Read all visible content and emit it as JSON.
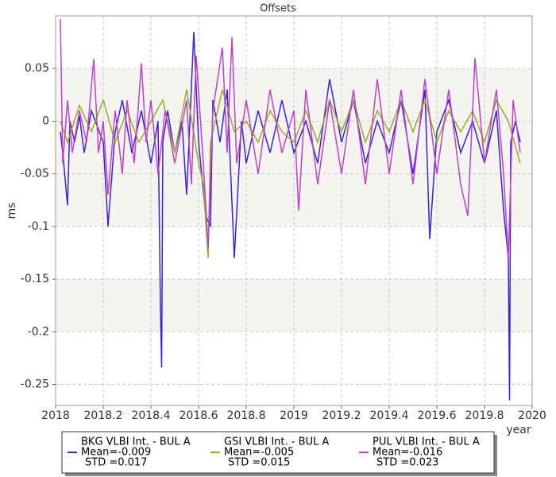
{
  "chart_data": {
    "type": "line",
    "title": "Offsets",
    "x_label": "year",
    "y_label": "ms",
    "xlim": [
      2018,
      2020
    ],
    "xticks": [
      2018,
      2018.2,
      2018.4,
      2018.6,
      2018.8,
      2019,
      2019.2,
      2019.4,
      2019.6,
      2019.8,
      2020
    ],
    "ylim": [
      -0.27,
      0.1
    ],
    "yticks": [
      0.05,
      0,
      -0.05,
      -0.1,
      -0.15,
      -0.2,
      -0.25
    ],
    "grid": true,
    "series": [
      {
        "name": "BKG VLBI Int. - BUL A",
        "color": "#3a22d8",
        "stats": [
          "Mean=-0.009",
          "STD =0.017"
        ],
        "x": [
          2018.02,
          2018.03,
          2018.05,
          2018.06,
          2018.08,
          2018.1,
          2018.12,
          2018.15,
          2018.2,
          2018.22,
          2018.25,
          2018.28,
          2018.32,
          2018.36,
          2018.4,
          2018.43,
          2018.44,
          2018.445,
          2018.45,
          2018.47,
          2018.5,
          2018.53,
          2018.55,
          2018.58,
          2018.6,
          2018.63,
          2018.65,
          2018.66,
          2018.69,
          2018.72,
          2018.75,
          2018.78,
          2018.8,
          2018.85,
          2018.9,
          2018.95,
          2019.0,
          2019.05,
          2019.1,
          2019.15,
          2019.2,
          2019.25,
          2019.3,
          2019.35,
          2019.4,
          2019.45,
          2019.5,
          2019.55,
          2019.57,
          2019.6,
          2019.65,
          2019.7,
          2019.75,
          2019.8,
          2019.85,
          2019.88,
          2019.9,
          2019.905,
          2019.91,
          2019.93,
          2019.95
        ],
        "values": [
          -0.01,
          -0.03,
          -0.08,
          0.0,
          -0.02,
          0.005,
          -0.03,
          0.01,
          -0.02,
          -0.1,
          -0.01,
          0.02,
          -0.03,
          0.01,
          -0.04,
          0.0,
          -0.178,
          -0.234,
          -0.02,
          0.01,
          -0.03,
          0.0,
          -0.07,
          0.085,
          -0.02,
          -0.09,
          -0.1,
          0.02,
          -0.02,
          0.03,
          -0.13,
          0.0,
          -0.04,
          0.01,
          -0.03,
          0.02,
          -0.03,
          0.0,
          -0.04,
          0.04,
          -0.02,
          0.02,
          -0.04,
          0.0,
          -0.03,
          0.02,
          -0.05,
          0.03,
          -0.112,
          -0.01,
          0.02,
          -0.03,
          0.0,
          -0.04,
          0.01,
          -0.085,
          -0.13,
          -0.265,
          -0.02,
          0.0,
          -0.02
        ]
      },
      {
        "name": "GSI VLBI Int. - BUL A",
        "color": "#9aab22",
        "stats": [
          "Mean=-0.005",
          "STD =0.015"
        ],
        "x": [
          2018.02,
          2018.05,
          2018.1,
          2018.15,
          2018.2,
          2018.25,
          2018.3,
          2018.35,
          2018.4,
          2018.45,
          2018.5,
          2018.55,
          2018.6,
          2018.62,
          2018.64,
          2018.65,
          2018.7,
          2018.75,
          2018.8,
          2018.85,
          2018.9,
          2018.95,
          2019.0,
          2019.05,
          2019.1,
          2019.15,
          2019.2,
          2019.25,
          2019.3,
          2019.35,
          2019.4,
          2019.45,
          2019.5,
          2019.55,
          2019.6,
          2019.65,
          2019.7,
          2019.75,
          2019.8,
          2019.85,
          2019.9,
          2019.95
        ],
        "values": [
          0.0,
          -0.02,
          0.015,
          -0.01,
          0.02,
          -0.02,
          0.01,
          -0.02,
          0.0,
          0.02,
          -0.03,
          0.03,
          -0.04,
          -0.06,
          -0.13,
          -0.02,
          0.03,
          -0.01,
          0.0,
          -0.02,
          0.01,
          -0.01,
          -0.02,
          0.01,
          -0.02,
          0.02,
          -0.01,
          0.02,
          -0.02,
          0.01,
          -0.01,
          0.02,
          -0.01,
          0.02,
          -0.02,
          0.01,
          -0.01,
          0.01,
          -0.02,
          0.02,
          0.0,
          -0.04
        ]
      },
      {
        "name": "PUL VLBI Int. - BUL A",
        "color": "#c040c8",
        "stats": [
          "Mean=-0.016",
          "STD =0.023"
        ],
        "x": [
          2018.02,
          2018.03,
          2018.05,
          2018.07,
          2018.1,
          2018.13,
          2018.16,
          2018.18,
          2018.2,
          2018.22,
          2018.25,
          2018.28,
          2018.3,
          2018.33,
          2018.36,
          2018.38,
          2018.4,
          2018.43,
          2018.46,
          2018.5,
          2018.55,
          2018.57,
          2018.59,
          2018.62,
          2018.64,
          2018.66,
          2018.7,
          2018.72,
          2018.74,
          2018.76,
          2018.8,
          2018.85,
          2018.9,
          2018.95,
          2019.0,
          2019.02,
          2019.05,
          2019.1,
          2019.15,
          2019.2,
          2019.25,
          2019.3,
          2019.35,
          2019.4,
          2019.45,
          2019.5,
          2019.55,
          2019.6,
          2019.65,
          2019.7,
          2019.73,
          2019.76,
          2019.8,
          2019.85,
          2019.88,
          2019.9,
          2019.92,
          2019.95
        ],
        "values": [
          0.097,
          -0.04,
          0.02,
          -0.03,
          0.01,
          -0.02,
          0.059,
          -0.03,
          0.0,
          -0.07,
          0.01,
          -0.05,
          0.02,
          -0.04,
          0.055,
          -0.02,
          0.02,
          -0.05,
          0.01,
          -0.04,
          0.02,
          -0.06,
          0.062,
          -0.04,
          -0.12,
          0.01,
          0.07,
          -0.03,
          0.08,
          -0.04,
          0.02,
          -0.05,
          0.03,
          -0.03,
          0.01,
          -0.085,
          0.03,
          -0.06,
          0.02,
          -0.05,
          0.03,
          -0.06,
          0.04,
          -0.05,
          0.03,
          -0.06,
          0.04,
          -0.05,
          0.03,
          -0.06,
          -0.09,
          0.06,
          -0.04,
          0.03,
          -0.05,
          -0.13,
          0.02,
          -0.03
        ]
      }
    ]
  }
}
